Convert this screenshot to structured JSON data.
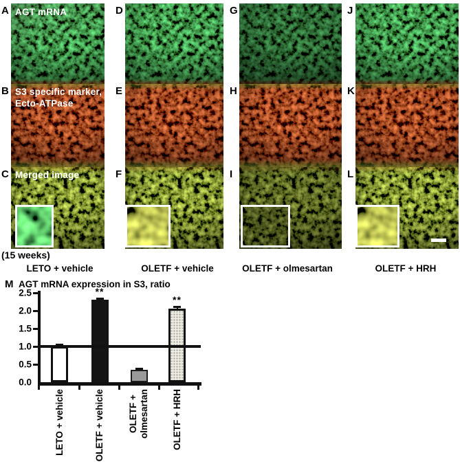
{
  "figure": {
    "timepoint_label": "(15 weeks)",
    "column_labels": [
      "LETO + vehicle",
      "OLETF + vehicle",
      "OLETF + olmesartan",
      "OLETF + HRH"
    ],
    "microscopy": {
      "row1_label": "AGT mRNA",
      "row2_label_line1": "S3 specific marker,",
      "row2_label_line2": "Ecto-ATPase",
      "row3_label": "Merged image",
      "panel_letters": [
        [
          "A",
          "B",
          "C"
        ],
        [
          "D",
          "E",
          "F"
        ],
        [
          "G",
          "H",
          "I"
        ],
        [
          "J",
          "K",
          "L"
        ]
      ],
      "row_channels": [
        "green",
        "red",
        "merged"
      ],
      "colors": {
        "green_signal": "#57a33b",
        "red_signal": "#9d3520",
        "merged_signal": "#b4bc4e",
        "background": "#0b0b07"
      },
      "scale_bar_panel": "L"
    }
  },
  "chart_data": {
    "type": "bar",
    "panel_label": "M",
    "title": "AGT mRNA expression in S3, ratio",
    "categories": [
      "LETO + vehicle",
      "OLETF + vehicle",
      "OLETF +\nolmesartan",
      "OLETF + HRH"
    ],
    "values": [
      1.0,
      2.3,
      0.35,
      2.05
    ],
    "errors": [
      0.05,
      0.03,
      0.03,
      0.05
    ],
    "significance": [
      "",
      "**",
      "",
      "**"
    ],
    "bar_styles": [
      "white",
      "black",
      "gray",
      "stipple"
    ],
    "ylim": [
      0.0,
      2.5
    ],
    "yticks": [
      0.0,
      0.5,
      1.0,
      1.5,
      2.0,
      2.5
    ],
    "reference_line": 1.0,
    "grid": false,
    "legend": "none",
    "colors": {
      "bar_black": "#141414",
      "bar_gray": "#9a9a9a",
      "bar_white": "#ffffff",
      "stipple_base": "#f2f0eb",
      "stipple_dot": "#b4b0a2",
      "axis": "#111111"
    }
  }
}
